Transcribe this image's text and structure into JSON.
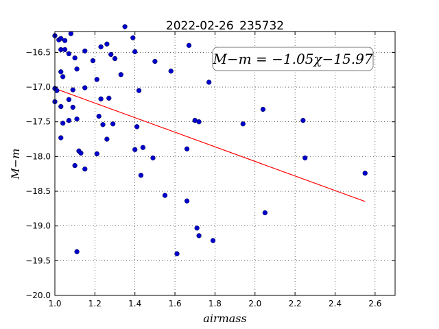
{
  "chart_data": {
    "type": "scatter",
    "title": "2022-02-26_235732",
    "xlabel": "airmass",
    "ylabel": "M−m",
    "xlim": [
      1.0,
      2.7
    ],
    "ylim": [
      -20.0,
      -16.2
    ],
    "x_ticks": [
      "1.0",
      "1.2",
      "1.4",
      "1.6",
      "1.8",
      "2.0",
      "2.2",
      "2.4",
      "2.6"
    ],
    "y_ticks": [
      "−16.5",
      "−17.0",
      "−17.5",
      "−18.0",
      "−18.5",
      "−19.0",
      "−19.5",
      "−20.0"
    ],
    "grid": true,
    "annotation": "M−m = −1.05χ−15.97",
    "fit": {
      "slope": -1.05,
      "intercept": -15.97,
      "x_range": [
        1.0,
        2.55
      ],
      "color": "#ff0000"
    },
    "point_color": "#0000cc",
    "points": [
      {
        "x": 1.0,
        "y": -16.26
      },
      {
        "x": 1.02,
        "y": -16.32
      },
      {
        "x": 1.03,
        "y": -16.3
      },
      {
        "x": 1.05,
        "y": -16.33
      },
      {
        "x": 1.08,
        "y": -16.23
      },
      {
        "x": 1.03,
        "y": -16.46
      },
      {
        "x": 1.05,
        "y": -16.46
      },
      {
        "x": 1.07,
        "y": -16.52
      },
      {
        "x": 1.1,
        "y": -16.58
      },
      {
        "x": 1.03,
        "y": -16.78
      },
      {
        "x": 1.04,
        "y": -16.85
      },
      {
        "x": 1.11,
        "y": -16.74
      },
      {
        "x": 1.0,
        "y": -17.02
      },
      {
        "x": 1.01,
        "y": -17.05
      },
      {
        "x": 1.09,
        "y": -17.04
      },
      {
        "x": 1.0,
        "y": -17.21
      },
      {
        "x": 1.03,
        "y": -17.28
      },
      {
        "x": 1.07,
        "y": -17.18
      },
      {
        "x": 1.09,
        "y": -17.29
      },
      {
        "x": 1.04,
        "y": -17.52
      },
      {
        "x": 1.07,
        "y": -17.48
      },
      {
        "x": 1.11,
        "y": -17.46
      },
      {
        "x": 1.03,
        "y": -17.73
      },
      {
        "x": 1.12,
        "y": -17.92
      },
      {
        "x": 1.13,
        "y": -17.95
      },
      {
        "x": 1.1,
        "y": -18.13
      },
      {
        "x": 1.15,
        "y": -18.18
      },
      {
        "x": 1.11,
        "y": -19.37
      },
      {
        "x": 1.15,
        "y": -16.48
      },
      {
        "x": 1.15,
        "y": -17.01
      },
      {
        "x": 1.19,
        "y": -16.62
      },
      {
        "x": 1.21,
        "y": -16.89
      },
      {
        "x": 1.23,
        "y": -16.42
      },
      {
        "x": 1.26,
        "y": -16.38
      },
      {
        "x": 1.28,
        "y": -16.53
      },
      {
        "x": 1.3,
        "y": -16.59
      },
      {
        "x": 1.23,
        "y": -17.17
      },
      {
        "x": 1.27,
        "y": -17.16
      },
      {
        "x": 1.22,
        "y": -17.42
      },
      {
        "x": 1.24,
        "y": -17.54
      },
      {
        "x": 1.29,
        "y": -17.53
      },
      {
        "x": 1.26,
        "y": -17.75
      },
      {
        "x": 1.21,
        "y": -17.96
      },
      {
        "x": 1.33,
        "y": -16.82
      },
      {
        "x": 1.35,
        "y": -16.13
      },
      {
        "x": 1.39,
        "y": -16.29
      },
      {
        "x": 1.4,
        "y": -16.49
      },
      {
        "x": 1.42,
        "y": -17.05
      },
      {
        "x": 1.41,
        "y": -17.57
      },
      {
        "x": 1.4,
        "y": -17.9
      },
      {
        "x": 1.44,
        "y": -17.87
      },
      {
        "x": 1.49,
        "y": -18.02
      },
      {
        "x": 1.43,
        "y": -18.27
      },
      {
        "x": 1.5,
        "y": -16.63
      },
      {
        "x": 1.58,
        "y": -16.77
      },
      {
        "x": 1.55,
        "y": -18.56
      },
      {
        "x": 1.61,
        "y": -19.4
      },
      {
        "x": 1.67,
        "y": -16.4
      },
      {
        "x": 1.66,
        "y": -17.89
      },
      {
        "x": 1.66,
        "y": -18.64
      },
      {
        "x": 1.7,
        "y": -17.48
      },
      {
        "x": 1.72,
        "y": -17.5
      },
      {
        "x": 1.71,
        "y": -19.03
      },
      {
        "x": 1.72,
        "y": -19.14
      },
      {
        "x": 1.79,
        "y": -19.21
      },
      {
        "x": 1.77,
        "y": -16.93
      },
      {
        "x": 1.94,
        "y": -17.53
      },
      {
        "x": 2.04,
        "y": -17.32
      },
      {
        "x": 2.05,
        "y": -18.81
      },
      {
        "x": 2.24,
        "y": -17.48
      },
      {
        "x": 2.25,
        "y": -18.02
      },
      {
        "x": 2.55,
        "y": -18.24
      }
    ]
  }
}
